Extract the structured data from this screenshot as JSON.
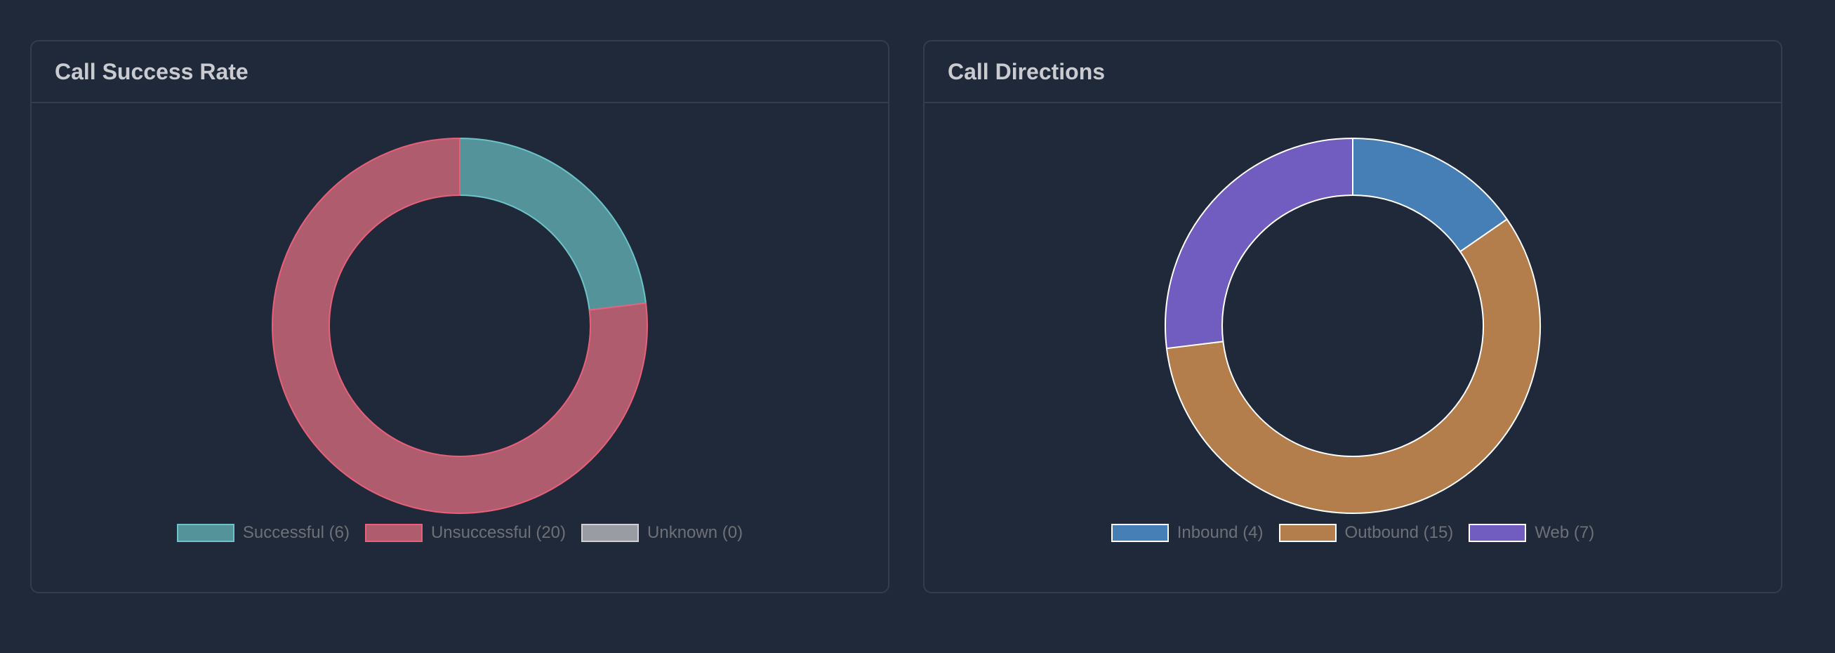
{
  "chart_data": [
    {
      "type": "pie",
      "donut": true,
      "title": "Call Success Rate",
      "categories": [
        "Successful",
        "Unsuccessful",
        "Unknown"
      ],
      "values": [
        6,
        20,
        0
      ],
      "legend_labels": [
        "Successful (6)",
        "Unsuccessful (20)",
        "Unknown (0)"
      ],
      "colors": [
        "#55939a",
        "#b05c6f",
        "#9a9ca4"
      ],
      "border_colors": [
        "#6cc3c8",
        "#e8607a",
        "#d0d0d4"
      ],
      "legend": "bottom"
    },
    {
      "type": "pie",
      "donut": true,
      "title": "Call Directions",
      "categories": [
        "Inbound",
        "Outbound",
        "Web"
      ],
      "values": [
        4,
        15,
        7
      ],
      "legend_labels": [
        "Inbound (4)",
        "Outbound (15)",
        "Web (7)"
      ],
      "colors": [
        "#457fb5",
        "#b37e4c",
        "#705dbf"
      ],
      "border_colors": [
        "#ffffff",
        "#ffffff",
        "#ffffff"
      ],
      "legend": "bottom"
    }
  ]
}
